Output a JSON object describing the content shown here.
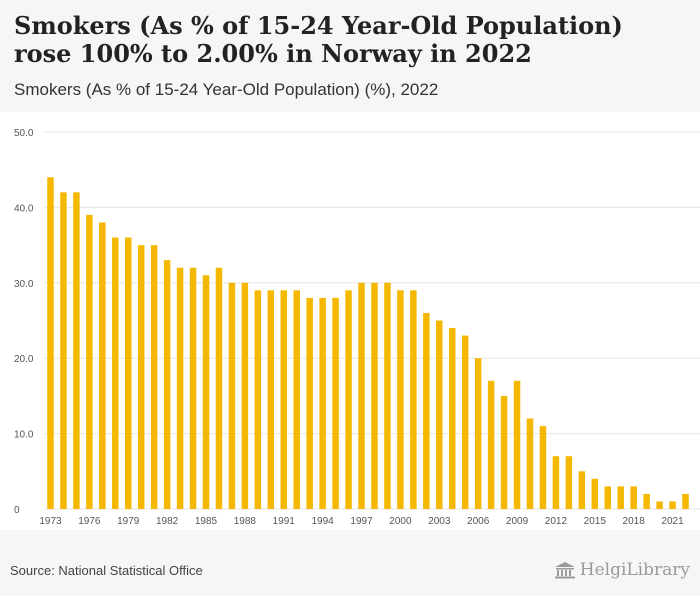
{
  "header": {
    "title": "Smokers (As % of 15-24 Year-Old Population) rose 100% to 2.00% in Norway in 2022",
    "subtitle": "Smokers (As % of 15-24 Year-Old Population) (%), 2022"
  },
  "footer": {
    "source": "Source: National Statistical Office",
    "brand": "HelgiLibrary"
  },
  "colors": {
    "bar": "#f5b800",
    "grid": "#e6e6e6",
    "plot_bg": "#ffffff",
    "page_bg": "#f6f6f6"
  },
  "chart_data": {
    "type": "bar",
    "title": "Smokers (As % of 15-24 Year-Old Population) (%), 2022",
    "xlabel": "",
    "ylabel": "",
    "ylim": [
      0,
      50
    ],
    "yticks": [
      "0",
      "10.0",
      "20.0",
      "30.0",
      "40.0",
      "50.0"
    ],
    "grid": true,
    "legend": "none",
    "categories": [
      1973,
      1974,
      1975,
      1976,
      1977,
      1978,
      1979,
      1980,
      1981,
      1982,
      1983,
      1984,
      1985,
      1986,
      1987,
      1988,
      1989,
      1990,
      1991,
      1992,
      1993,
      1994,
      1995,
      1996,
      1997,
      1998,
      1999,
      2000,
      2001,
      2002,
      2003,
      2004,
      2005,
      2006,
      2007,
      2008,
      2009,
      2010,
      2011,
      2012,
      2013,
      2014,
      2015,
      2016,
      2017,
      2018,
      2019,
      2020,
      2021,
      2022
    ],
    "xtick_labels": [
      "1973",
      "1976",
      "1979",
      "1982",
      "1985",
      "1988",
      "1991",
      "1994",
      "1997",
      "2000",
      "2003",
      "2006",
      "2009",
      "2012",
      "2015",
      "2018",
      "2021"
    ],
    "values": [
      44,
      42,
      42,
      39,
      38,
      36,
      36,
      35,
      35,
      33,
      32,
      32,
      31,
      32,
      30,
      30,
      29,
      29,
      29,
      29,
      28,
      28,
      28,
      29,
      30,
      30,
      30,
      29,
      29,
      26,
      25,
      24,
      23,
      20,
      17,
      15,
      17,
      12,
      11,
      7,
      7,
      5,
      4,
      3,
      3,
      3,
      2,
      1,
      1,
      2
    ]
  }
}
